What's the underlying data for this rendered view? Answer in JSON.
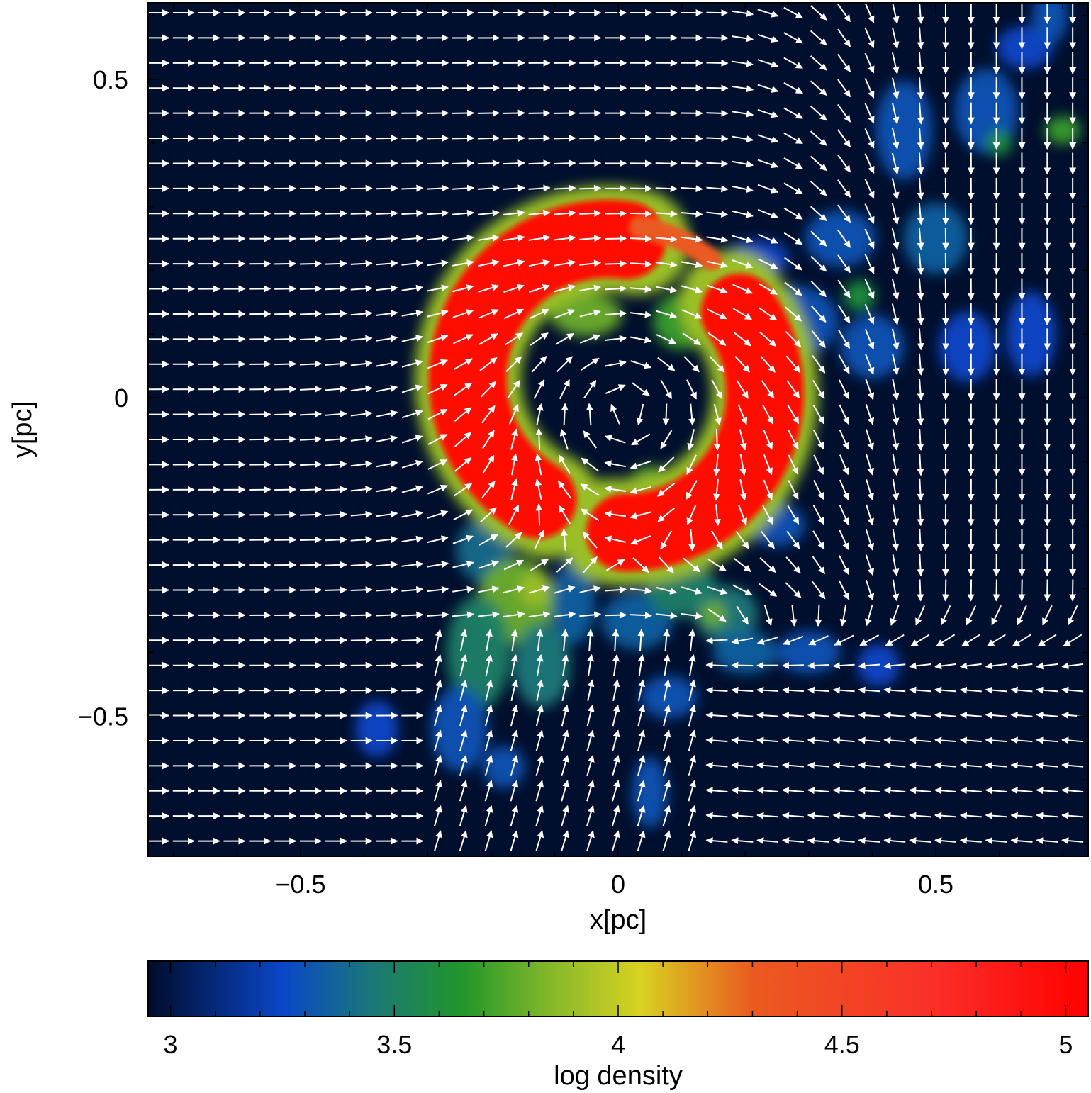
{
  "chart_data": {
    "type": "heatmap",
    "overlay": "vector field (white arrows)",
    "xlabel": "x[pc]",
    "ylabel": "y[pc]",
    "xlim": [
      -0.74,
      0.74
    ],
    "ylim": [
      -0.72,
      0.62
    ],
    "xticks": [
      -0.5,
      0,
      0.5
    ],
    "xtick_labels": [
      "−0.5",
      "0",
      "0.5"
    ],
    "yticks": [
      0.5,
      0,
      -0.5
    ],
    "ytick_labels": [
      "0.5",
      "0",
      "−0.5"
    ],
    "colorbar": {
      "label": "log density",
      "range": [
        2.95,
        5.05
      ],
      "ticks": [
        3,
        3.5,
        4,
        4.5,
        5
      ],
      "tick_labels": [
        "3",
        "3.5",
        "4",
        "4.5",
        "5"
      ],
      "stops": [
        {
          "value": 2.95,
          "color": "#000c2a"
        },
        {
          "value": 3.25,
          "color": "#0a46c8"
        },
        {
          "value": 3.45,
          "color": "#1a7878"
        },
        {
          "value": 3.65,
          "color": "#20962a"
        },
        {
          "value": 3.85,
          "color": "#86b82a"
        },
        {
          "value": 4.05,
          "color": "#d8d222"
        },
        {
          "value": 4.3,
          "color": "#ea5a20"
        },
        {
          "value": 4.7,
          "color": "#fa3028"
        },
        {
          "value": 5.05,
          "color": "#ff0000"
        }
      ]
    },
    "background_color": "#000f2e",
    "features": [
      {
        "structure": "dense ring",
        "center": [
          0.0,
          0.03
        ],
        "radius_pc": 0.22,
        "log_density": 5.0
      },
      {
        "structure": "tail south",
        "center": [
          -0.12,
          -0.38
        ],
        "log_density": 3.8
      },
      {
        "structure": "clumps north-east",
        "center": [
          0.48,
          0.28
        ],
        "log_density": 3.3
      }
    ]
  }
}
